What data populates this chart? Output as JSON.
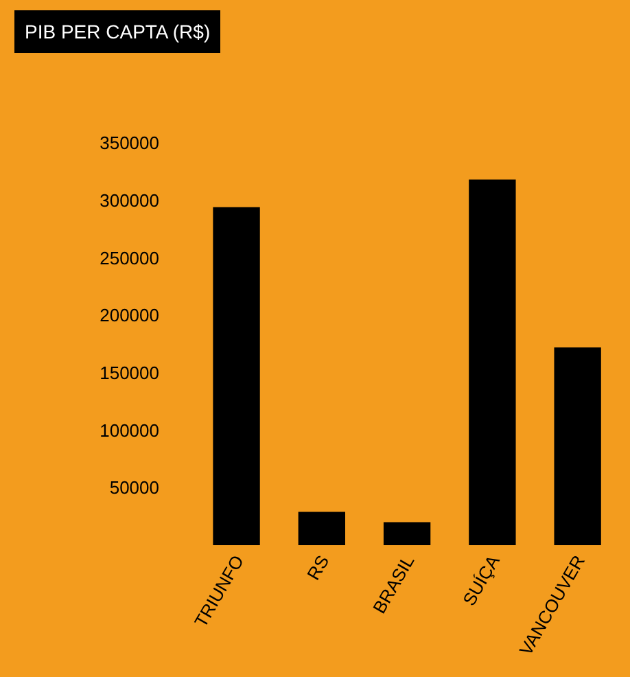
{
  "chart_data": {
    "type": "bar",
    "title": "PIB PER CAPTA (R$)",
    "categories": [
      "TRIUNFO",
      "RS",
      "BRASIL",
      "SUÍÇA",
      "VANCOUVER"
    ],
    "values": [
      294000,
      29000,
      20000,
      318000,
      172000
    ],
    "color": "#000000",
    "ylim": [
      0,
      350000
    ],
    "yticks": [
      50000,
      100000,
      150000,
      200000,
      250000,
      300000,
      350000
    ],
    "grid": false,
    "legend": false
  }
}
